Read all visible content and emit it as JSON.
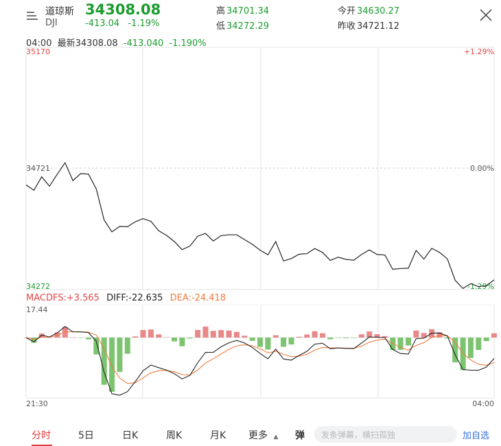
{
  "header": {
    "name": "道琼斯",
    "code": "DJI",
    "price": "34308.08",
    "change": "-413.04",
    "change_pct": "-1.19%",
    "high_label": "高",
    "high_value": "34701.34",
    "low_label": "低",
    "low_value": "34272.29",
    "open_label": "今开",
    "open_value": "34630.27",
    "prev_close_label": "昨收",
    "prev_close_value": "34721.12"
  },
  "info_line": {
    "time": "04:00",
    "latest_label": "最新",
    "latest_value": "34308.08",
    "change": "-413.040",
    "change_pct": "-1.190%"
  },
  "main_chart": {
    "y_top": "35170",
    "y_mid": "34721",
    "y_bottom": "34272",
    "pct_top": "+1.29%",
    "pct_mid": "0.00%",
    "pct_bottom": "-1.29%"
  },
  "macd": {
    "macd_label": "MACDFS:+3.565",
    "diff_label": "DIFF:-22.635",
    "dea_label": "DEA:-24.418",
    "y_top": "17.44",
    "time_start": "21:30",
    "time_end": "04:00"
  },
  "tabs": [
    {
      "label": "分时",
      "active": true
    },
    {
      "label": "5日"
    },
    {
      "label": "日K"
    },
    {
      "label": "周K"
    },
    {
      "label": "月K"
    },
    {
      "label": "更多"
    }
  ],
  "danmu_icon_label": "弹",
  "search_placeholder": "发条弹幕，横扫孤独",
  "add_watch_label": "加自选",
  "colors": {
    "up": "#e14545",
    "down": "#1a9c2e",
    "dea": "#f07b3f",
    "active_tab": "#e03a3a",
    "link": "#3b73d9"
  },
  "chart_data": {
    "type": "line",
    "title": "",
    "ylim": [
      34272,
      35170
    ],
    "baseline": 34721,
    "series": [
      {
        "values": [
          34660,
          34640,
          34690,
          34655,
          34700,
          34742,
          34676,
          34702,
          34700,
          34645,
          34530,
          34486,
          34506,
          34505,
          34523,
          34535,
          34525,
          34490,
          34473,
          34450,
          34420,
          34433,
          34470,
          34480,
          34452,
          34472,
          34475,
          34475,
          34457,
          34440,
          34418,
          34401,
          34450,
          34378,
          34387,
          34403,
          34405,
          34424,
          34410,
          34380,
          34392,
          34384,
          34381,
          34402,
          34419,
          34402,
          34400,
          34347,
          34350,
          34351,
          34417,
          34385,
          34425,
          34410,
          34386,
          34306,
          34276,
          34294,
          34283,
          34286,
          34308
        ]
      }
    ]
  }
}
